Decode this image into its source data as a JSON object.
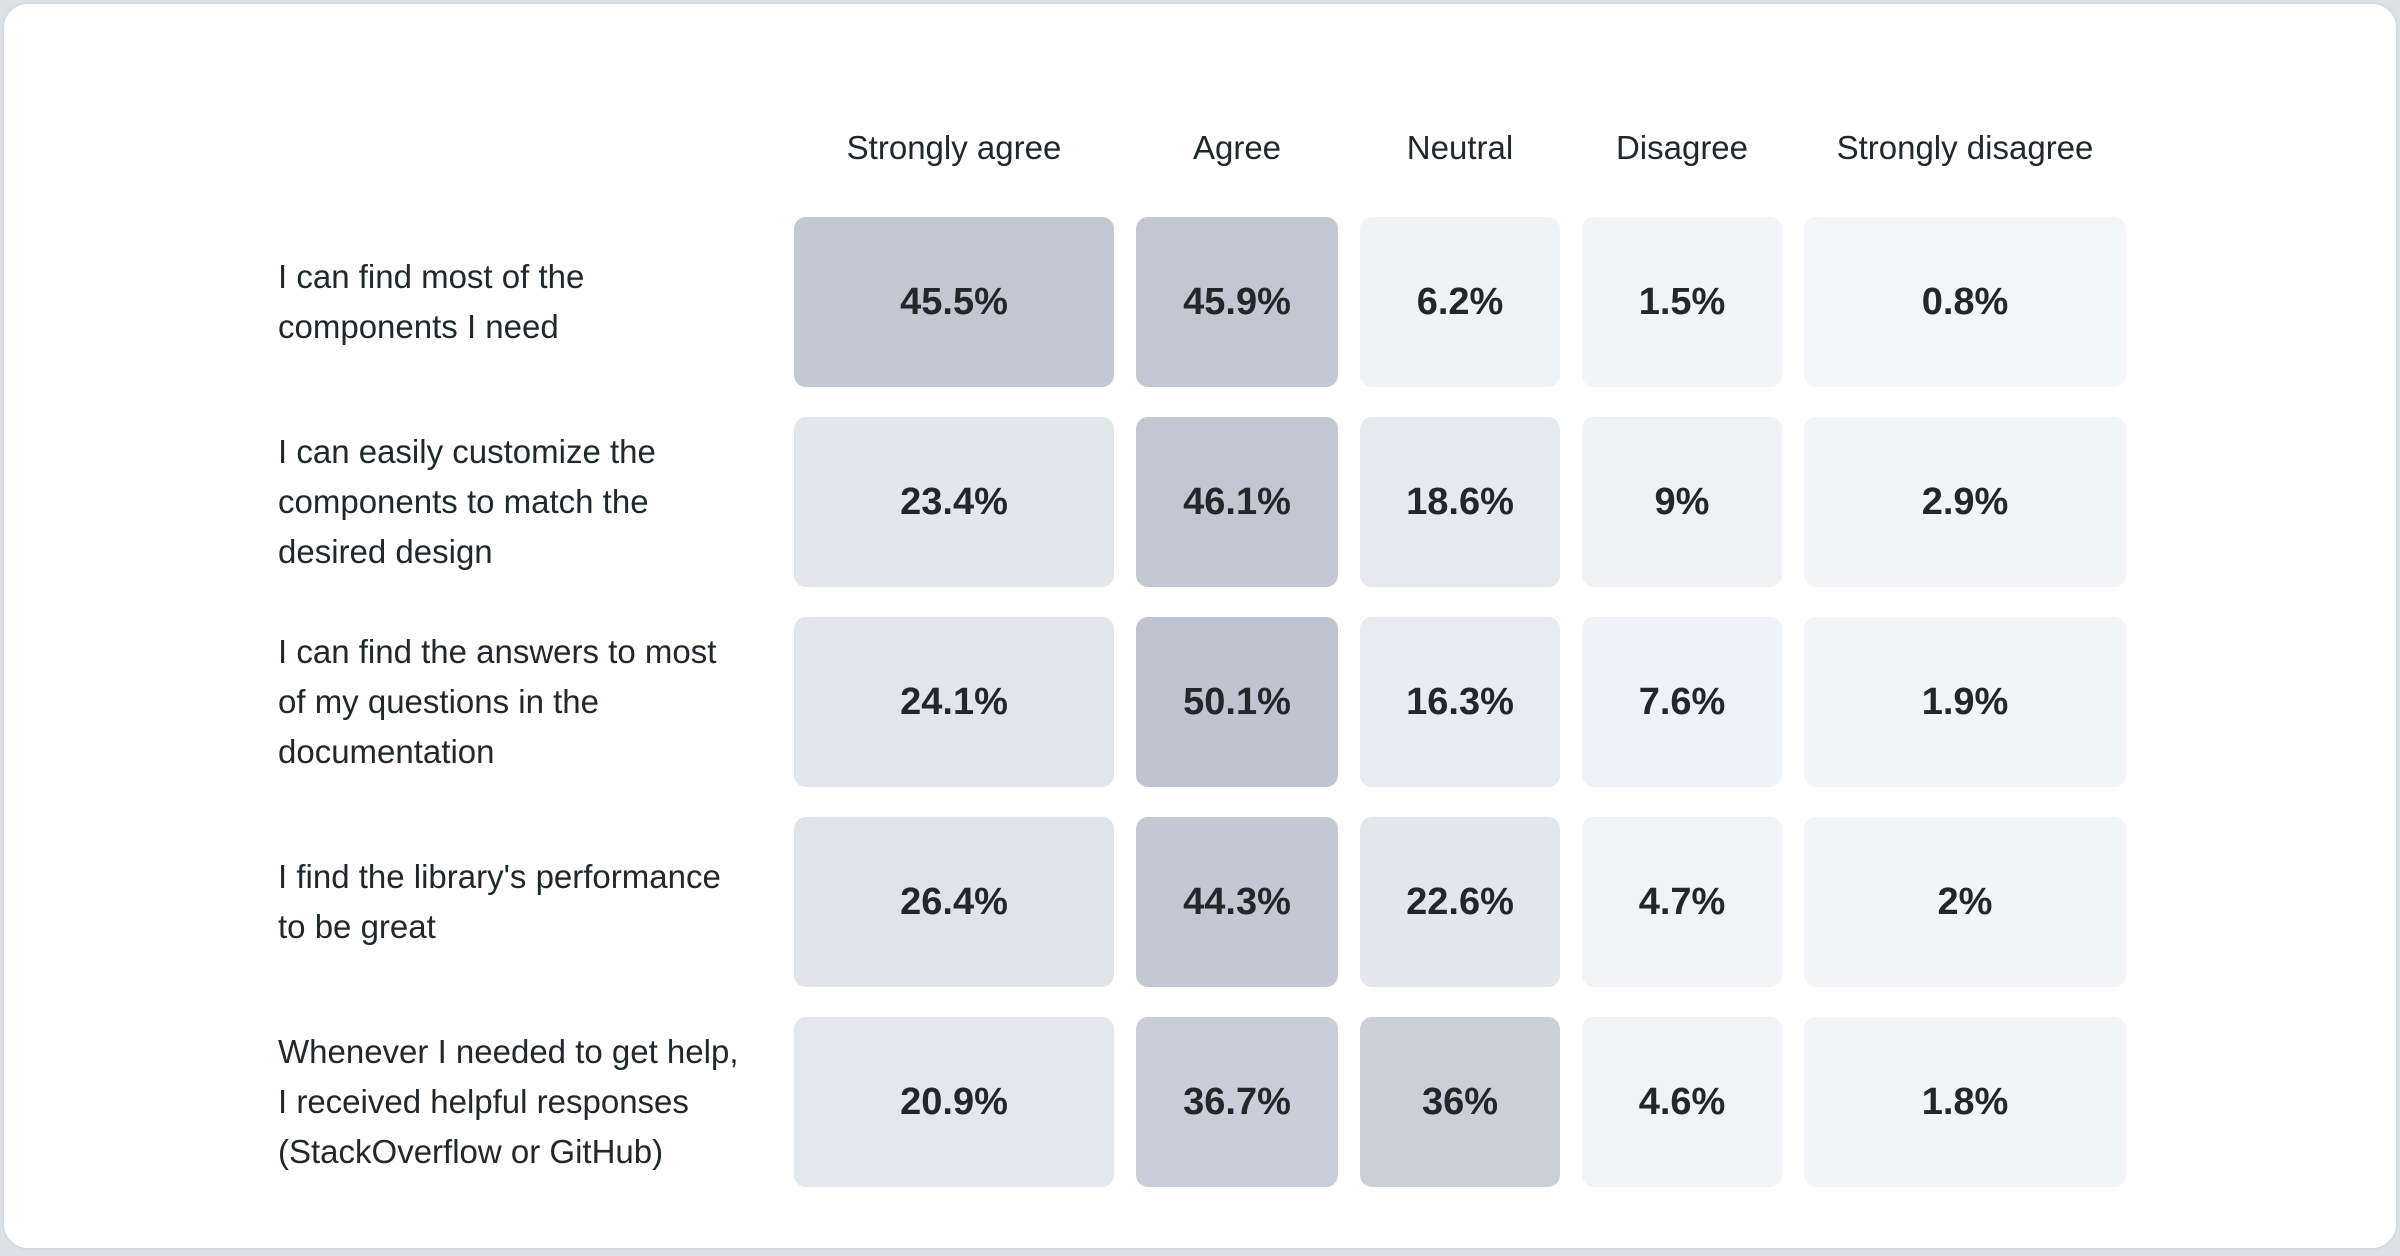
{
  "page": {
    "background": "#dce1e6",
    "card_background": "#ffffff",
    "card_border": "#d4dade",
    "text_color": "#21272a"
  },
  "chart_data": {
    "type": "heatmap",
    "title": "",
    "columns": [
      "Strongly agree",
      "Agree",
      "Neutral",
      "Disagree",
      "Strongly disagree"
    ],
    "rows": [
      {
        "label_lines": [
          "I can find most of the",
          "components I need"
        ],
        "values": [
          45.5,
          45.9,
          6.2,
          1.5,
          0.8
        ],
        "display": [
          "45.5%",
          "45.9%",
          "6.2%",
          "1.5%",
          "0.8%"
        ]
      },
      {
        "label_lines": [
          "I can easily customize the",
          "components to match the",
          "desired design"
        ],
        "values": [
          23.4,
          46.1,
          18.6,
          9,
          2.9
        ],
        "display": [
          "23.4%",
          "46.1%",
          "18.6%",
          "9%",
          "2.9%"
        ]
      },
      {
        "label_lines": [
          "I can find the answers to most",
          "of my questions in the",
          "documentation"
        ],
        "values": [
          24.1,
          50.1,
          16.3,
          7.6,
          1.9
        ],
        "display": [
          "24.1%",
          "50.1%",
          "16.3%",
          "7.6%",
          "1.9%"
        ]
      },
      {
        "label_lines": [
          "I find the library's performance",
          "to be great"
        ],
        "values": [
          26.4,
          44.3,
          22.6,
          4.7,
          2
        ],
        "display": [
          "26.4%",
          "44.3%",
          "22.6%",
          "4.7%",
          "2%"
        ]
      },
      {
        "label_lines": [
          "Whenever I needed to get help,",
          "I received helpful responses",
          "(StackOverflow or GitHub)"
        ],
        "values": [
          20.9,
          36.7,
          36,
          4.6,
          1.8
        ],
        "display": [
          "20.9%",
          "36.7%",
          "36%",
          "4.6%",
          "1.8%"
        ]
      }
    ],
    "value_suffix": "%",
    "color_scale": {
      "stops": [
        [
          0,
          "#f3f5f8"
        ],
        [
          10,
          "#eef1f5"
        ],
        [
          20,
          "#e5e9ee"
        ],
        [
          27,
          "#e0e4ea"
        ],
        [
          36,
          "#c9d0d8"
        ],
        [
          46,
          "#c1c8d2"
        ],
        [
          50.1,
          "#bec5d0"
        ]
      ]
    },
    "legend": "none",
    "grid": "off"
  }
}
